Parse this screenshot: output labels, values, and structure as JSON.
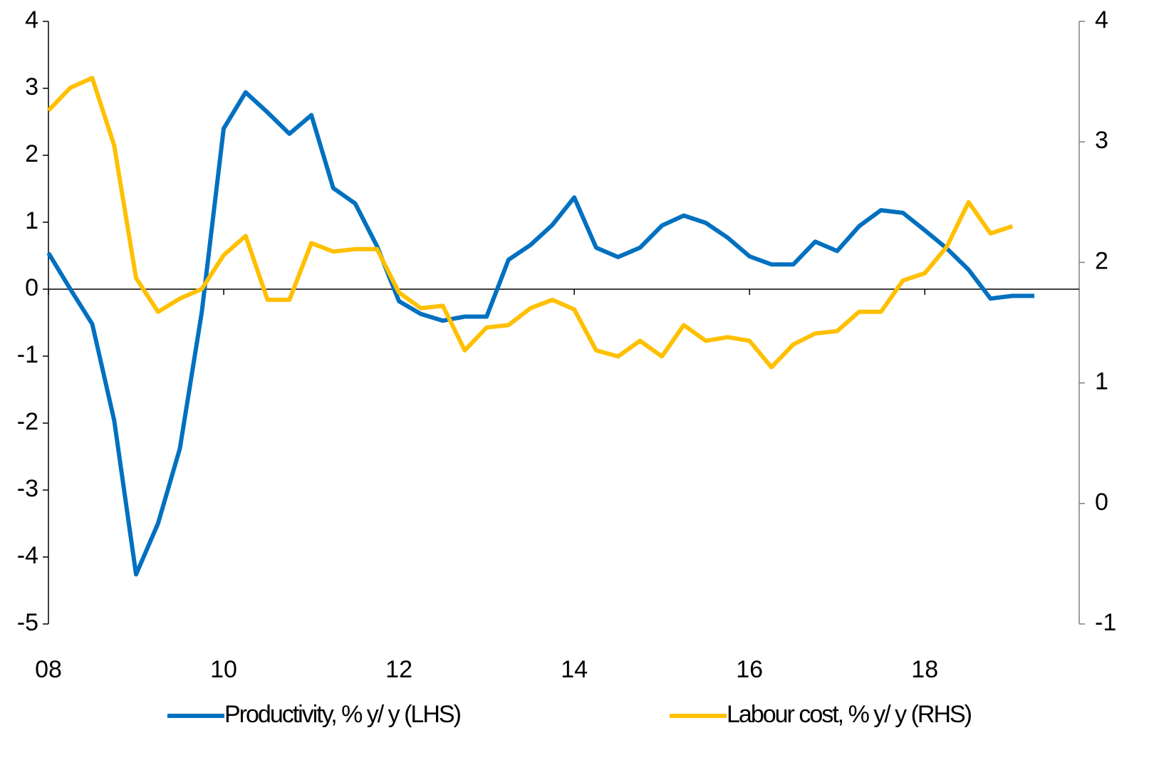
{
  "chart_data": {
    "type": "line",
    "x": [
      8,
      8.25,
      8.5,
      8.75,
      9,
      9.25,
      9.5,
      9.75,
      10,
      10.25,
      10.5,
      10.75,
      11,
      11.25,
      11.5,
      11.75,
      12,
      12.25,
      12.5,
      12.75,
      13,
      13.25,
      13.5,
      13.75,
      14,
      14.25,
      14.5,
      14.75,
      15,
      15.25,
      15.5,
      15.75,
      16,
      16.25,
      16.5,
      16.75,
      17,
      17.25,
      17.5,
      17.75,
      18,
      18.25,
      18.5,
      18.75,
      19,
      19.25
    ],
    "series": [
      {
        "name": "Productivity, % y/ y (LHS)",
        "color": "#0070c0",
        "values": [
          0.54,
          0.0,
          -0.52,
          -1.96,
          -4.26,
          -3.5,
          -2.38,
          -0.34,
          2.4,
          2.94,
          2.64,
          2.32,
          2.6,
          1.51,
          1.28,
          0.64,
          -0.18,
          -0.37,
          -0.47,
          -0.41,
          -0.41,
          0.44,
          0.66,
          0.96,
          1.37,
          0.62,
          0.48,
          0.62,
          0.95,
          1.1,
          0.99,
          0.77,
          0.49,
          0.37,
          0.37,
          0.71,
          0.57,
          0.94,
          1.18,
          1.14,
          0.88,
          0.61,
          0.29,
          -0.14,
          -0.1,
          -0.1
        ]
      },
      {
        "name": "Labour cost, % y/ y (RHS)",
        "color": "#ffc000",
        "axis": "y2",
        "values": [
          3.26,
          3.45,
          3.53,
          2.97,
          1.87,
          1.59,
          1.7,
          1.78,
          2.06,
          2.22,
          1.69,
          1.69,
          2.16,
          2.09,
          2.11,
          2.11,
          1.75,
          1.62,
          1.64,
          1.27,
          1.46,
          1.48,
          1.62,
          1.69,
          1.61,
          1.27,
          1.22,
          1.35,
          1.22,
          1.48,
          1.35,
          1.38,
          1.35,
          1.13,
          1.32,
          1.41,
          1.43,
          1.59,
          1.59,
          1.85,
          1.91,
          2.13,
          2.5,
          2.24,
          2.3,
          null
        ]
      }
    ],
    "xlim": [
      8,
      19.25
    ],
    "xticks": [
      {
        "value": 8,
        "label": "08"
      },
      10,
      12,
      14,
      16,
      18
    ],
    "ylim": [
      -5,
      4
    ],
    "yticks": [
      -5,
      -4,
      -3,
      -2,
      -1,
      0,
      1,
      2,
      3,
      4
    ],
    "y2lim": [
      -1,
      4
    ],
    "y2ticks": [
      -1,
      0,
      1,
      2,
      3,
      4
    ],
    "legend": "bottom"
  }
}
